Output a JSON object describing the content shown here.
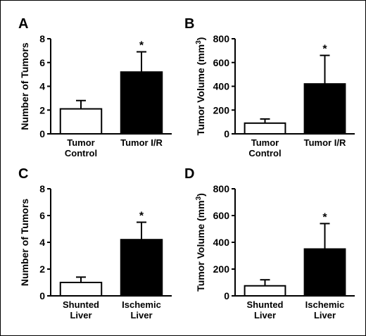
{
  "chart_data": [
    {
      "panel": "A",
      "type": "bar",
      "categories": [
        [
          "Tumor",
          "Control"
        ],
        [
          "Tumor I/R"
        ]
      ],
      "values": [
        2.1,
        5.2
      ],
      "errors": [
        0.7,
        1.7
      ],
      "colors": [
        "#ffffff",
        "#000000"
      ],
      "ylabel": "Number of Tumors",
      "ylabel_sup": "",
      "ylabel_tail": "",
      "ylim": [
        0,
        8
      ],
      "yticks": [
        0,
        2,
        4,
        6,
        8
      ],
      "annotations": [
        "",
        "*"
      ]
    },
    {
      "panel": "B",
      "type": "bar",
      "categories": [
        [
          "Tumor",
          "Control"
        ],
        [
          "Tumor I/R"
        ]
      ],
      "values": [
        90,
        420
      ],
      "errors": [
        35,
        240
      ],
      "colors": [
        "#ffffff",
        "#000000"
      ],
      "ylabel": "Tumor Volume (mm",
      "ylabel_sup": "3",
      "ylabel_tail": ")",
      "ylim": [
        0,
        800
      ],
      "yticks": [
        0,
        200,
        400,
        600,
        800
      ],
      "annotations": [
        "",
        "*"
      ]
    },
    {
      "panel": "C",
      "type": "bar",
      "categories": [
        [
          "Shunted",
          "Liver"
        ],
        [
          "Ischemic",
          "Liver"
        ]
      ],
      "values": [
        1.0,
        4.2
      ],
      "errors": [
        0.4,
        1.3
      ],
      "colors": [
        "#ffffff",
        "#000000"
      ],
      "ylabel": "Number of Tumors",
      "ylabel_sup": "",
      "ylabel_tail": "",
      "ylim": [
        0,
        8
      ],
      "yticks": [
        0,
        2,
        4,
        6,
        8
      ],
      "annotations": [
        "",
        "*"
      ]
    },
    {
      "panel": "D",
      "type": "bar",
      "categories": [
        [
          "Shunted",
          "Liver"
        ],
        [
          "Ischemic",
          "Liver"
        ]
      ],
      "values": [
        75,
        350
      ],
      "errors": [
        45,
        190
      ],
      "colors": [
        "#ffffff",
        "#000000"
      ],
      "ylabel": "Tumor Volume (mm",
      "ylabel_sup": "3",
      "ylabel_tail": ")",
      "ylim": [
        0,
        800
      ],
      "yticks": [
        0,
        200,
        400,
        600,
        800
      ],
      "annotations": [
        "",
        "*"
      ]
    }
  ]
}
